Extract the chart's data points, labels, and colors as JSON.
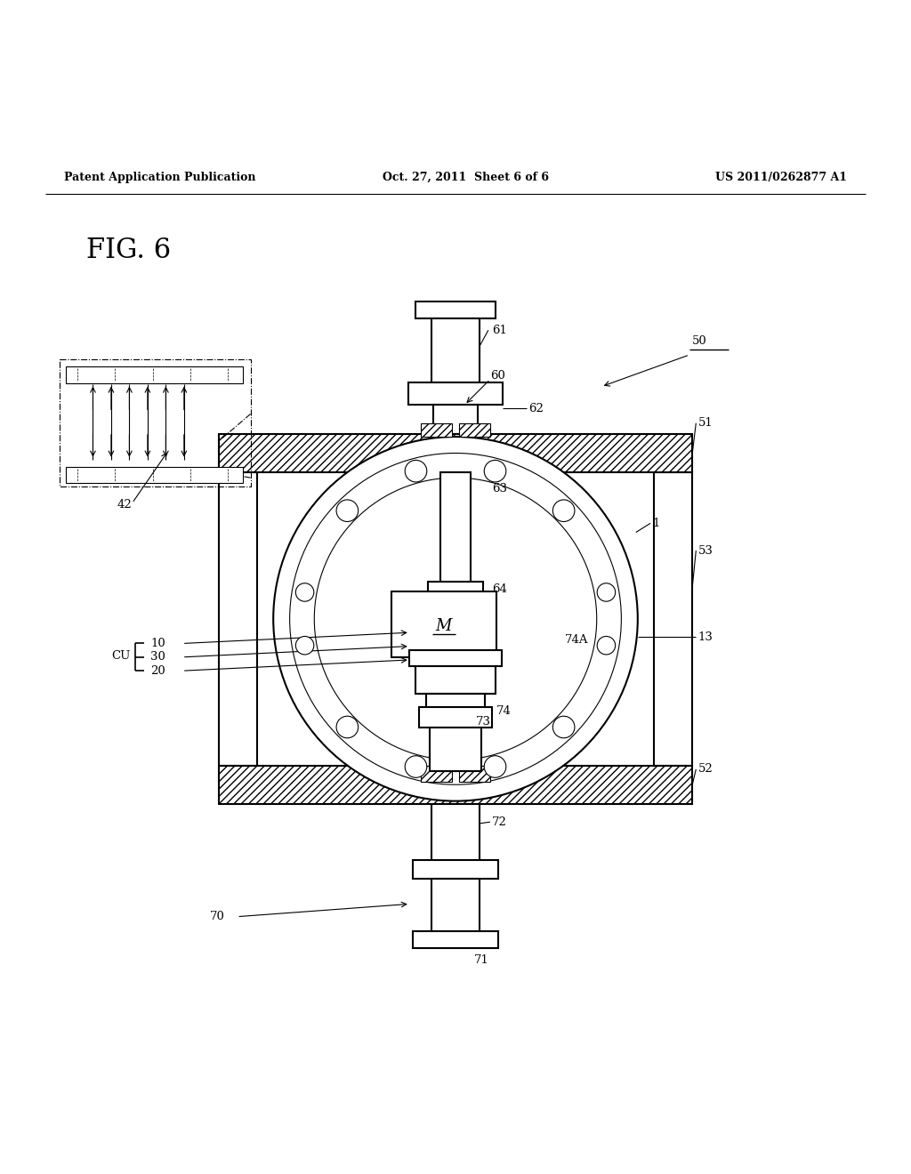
{
  "header_left": "Patent Application Publication",
  "header_center": "Oct. 27, 2011  Sheet 6 of 6",
  "header_right": "US 2011/0262877 A1",
  "fig_label": "FIG. 6",
  "bg_color": "#ffffff",
  "lc": "#000000",
  "lw_main": 1.5,
  "lw_thin": 0.8,
  "lw_thick": 2.0
}
